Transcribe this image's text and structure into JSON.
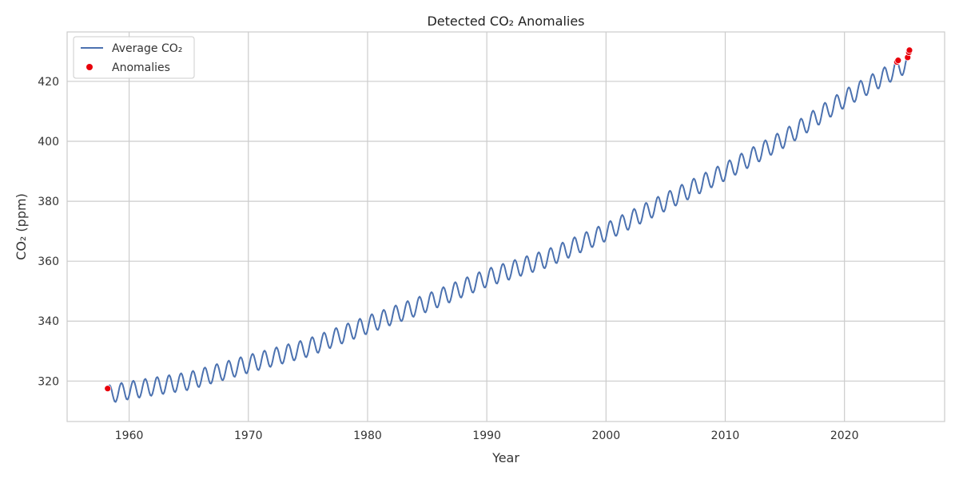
{
  "chart_data": {
    "type": "line",
    "title": "Detected CO₂ Anomalies",
    "xlabel": "Year",
    "ylabel": "CO₂ (ppm)",
    "xlim": [
      1954.8,
      2028.4
    ],
    "ylim": [
      306.5,
      436.5
    ],
    "x_ticks": [
      1960,
      1970,
      1980,
      1990,
      2000,
      2010,
      2020
    ],
    "y_ticks": [
      320,
      340,
      360,
      380,
      400,
      420
    ],
    "grid": true,
    "legend_position": "top-left",
    "series": [
      {
        "name": "Average CO₂",
        "kind": "line",
        "color": "#4c72b0",
        "seasonal_amplitude": 3.0,
        "x": [
          1958.2,
          1960,
          1965,
          1970,
          1975,
          1980,
          1985,
          1990,
          1995,
          2000,
          2005,
          2010,
          2015,
          2020,
          2025.5
        ],
        "y": [
          315.5,
          316.9,
          320.0,
          325.7,
          331.1,
          338.8,
          346.1,
          354.4,
          360.8,
          369.7,
          379.8,
          389.9,
          401.0,
          414.2,
          426.5
        ]
      },
      {
        "name": "Anomalies",
        "kind": "scatter",
        "color": "#e8000b",
        "x": [
          1958.2,
          2024.4,
          2024.5,
          2025.3,
          2025.4,
          2025.45
        ],
        "y": [
          317.5,
          426.5,
          427.0,
          428.0,
          429.7,
          430.4
        ]
      }
    ]
  }
}
